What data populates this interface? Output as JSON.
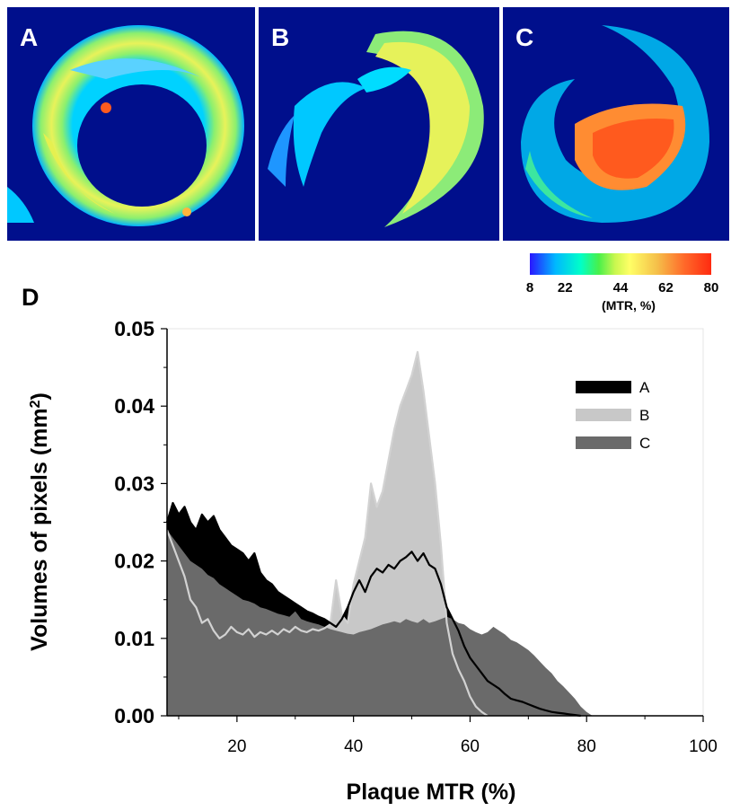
{
  "panels": {
    "a": {
      "label": "A"
    },
    "b": {
      "label": "B"
    },
    "c": {
      "label": "C"
    },
    "d": {
      "label": "D"
    }
  },
  "colorbar": {
    "ticks": [
      "8",
      "22",
      "44",
      "62",
      "80"
    ],
    "tick_values": [
      8,
      22,
      44,
      62,
      80
    ],
    "range": [
      8,
      80
    ],
    "unit_label": "(MTR, %)",
    "colors": [
      "#2a16ff",
      "#00b7ff",
      "#00ffc8",
      "#49f04a",
      "#ffff66",
      "#f5c04a",
      "#ff6a2a",
      "#ff2a10"
    ]
  },
  "chart_data": {
    "type": "area",
    "xlabel": "Plaque MTR (%)",
    "ylabel": "Volumes of pixels (mm²)",
    "xlim": [
      8,
      100
    ],
    "ylim": [
      0,
      0.05
    ],
    "x_ticks": [
      20,
      40,
      60,
      80,
      100
    ],
    "y_ticks": [
      "0.00",
      "0.01",
      "0.02",
      "0.03",
      "0.04",
      "0.05"
    ],
    "legend_position": "top-right",
    "series": [
      {
        "name": "A",
        "color": "#000000",
        "points": [
          [
            8,
            0.025
          ],
          [
            9,
            0.0275
          ],
          [
            10,
            0.026
          ],
          [
            11,
            0.027
          ],
          [
            12,
            0.025
          ],
          [
            13,
            0.024
          ],
          [
            14,
            0.026
          ],
          [
            15,
            0.025
          ],
          [
            16,
            0.0258
          ],
          [
            17,
            0.024
          ],
          [
            18,
            0.023
          ],
          [
            19,
            0.022
          ],
          [
            20,
            0.0215
          ],
          [
            21,
            0.021
          ],
          [
            22,
            0.02
          ],
          [
            23,
            0.021
          ],
          [
            24,
            0.0185
          ],
          [
            25,
            0.0175
          ],
          [
            26,
            0.017
          ],
          [
            27,
            0.016
          ],
          [
            28,
            0.0155
          ],
          [
            29,
            0.015
          ],
          [
            30,
            0.0145
          ],
          [
            31,
            0.014
          ],
          [
            32,
            0.0135
          ],
          [
            33,
            0.0132
          ],
          [
            34,
            0.0128
          ],
          [
            35,
            0.0125
          ],
          [
            36,
            0.012
          ],
          [
            37,
            0.0115
          ],
          [
            38,
            0.0125
          ],
          [
            39,
            0.014
          ],
          [
            40,
            0.016
          ],
          [
            41,
            0.0175
          ],
          [
            42,
            0.016
          ],
          [
            43,
            0.018
          ],
          [
            44,
            0.019
          ],
          [
            45,
            0.0185
          ],
          [
            46,
            0.0195
          ],
          [
            47,
            0.019
          ],
          [
            48,
            0.02
          ],
          [
            49,
            0.0205
          ],
          [
            50,
            0.0212
          ],
          [
            51,
            0.02
          ],
          [
            52,
            0.021
          ],
          [
            53,
            0.0195
          ],
          [
            54,
            0.019
          ],
          [
            55,
            0.017
          ],
          [
            56,
            0.014
          ],
          [
            57,
            0.0125
          ],
          [
            58,
            0.011
          ],
          [
            59,
            0.009
          ],
          [
            60,
            0.0075
          ],
          [
            61,
            0.0065
          ],
          [
            62,
            0.0055
          ],
          [
            63,
            0.0045
          ],
          [
            64,
            0.004
          ],
          [
            65,
            0.0035
          ],
          [
            66,
            0.0028
          ],
          [
            67,
            0.0022
          ],
          [
            68,
            0.002
          ],
          [
            69,
            0.0018
          ],
          [
            70,
            0.0015
          ],
          [
            71,
            0.0012
          ],
          [
            72,
            0.0009
          ],
          [
            73,
            0.0007
          ],
          [
            74,
            0.0005
          ],
          [
            75,
            0.0004
          ],
          [
            76,
            0.0003
          ],
          [
            77,
            0.0002
          ],
          [
            78,
            0.0001
          ],
          [
            79,
            0
          ]
        ]
      },
      {
        "name": "B",
        "color": "#c8c8c8",
        "points": [
          [
            8,
            0.024
          ],
          [
            9,
            0.022
          ],
          [
            10,
            0.02
          ],
          [
            11,
            0.018
          ],
          [
            12,
            0.015
          ],
          [
            13,
            0.014
          ],
          [
            14,
            0.012
          ],
          [
            15,
            0.0125
          ],
          [
            16,
            0.011
          ],
          [
            17,
            0.01
          ],
          [
            18,
            0.0105
          ],
          [
            19,
            0.0115
          ],
          [
            20,
            0.0108
          ],
          [
            21,
            0.0105
          ],
          [
            22,
            0.0112
          ],
          [
            23,
            0.0102
          ],
          [
            24,
            0.0108
          ],
          [
            25,
            0.0105
          ],
          [
            26,
            0.011
          ],
          [
            27,
            0.0105
          ],
          [
            28,
            0.0112
          ],
          [
            29,
            0.0108
          ],
          [
            30,
            0.0115
          ],
          [
            31,
            0.011
          ],
          [
            32,
            0.0108
          ],
          [
            33,
            0.0112
          ],
          [
            34,
            0.011
          ],
          [
            35,
            0.0113
          ],
          [
            36,
            0.0118
          ],
          [
            37,
            0.0175
          ],
          [
            38,
            0.013
          ],
          [
            39,
            0.012
          ],
          [
            40,
            0.017
          ],
          [
            41,
            0.02
          ],
          [
            42,
            0.023
          ],
          [
            43,
            0.03
          ],
          [
            44,
            0.027
          ],
          [
            45,
            0.029
          ],
          [
            46,
            0.033
          ],
          [
            47,
            0.037
          ],
          [
            48,
            0.04
          ],
          [
            49,
            0.042
          ],
          [
            50,
            0.044
          ],
          [
            51,
            0.047
          ],
          [
            52,
            0.042
          ],
          [
            53,
            0.036
          ],
          [
            54,
            0.03
          ],
          [
            55,
            0.022
          ],
          [
            56,
            0.012
          ],
          [
            57,
            0.008
          ],
          [
            58,
            0.006
          ],
          [
            59,
            0.0045
          ],
          [
            60,
            0.0025
          ],
          [
            61,
            0.0012
          ],
          [
            62,
            0.0005
          ],
          [
            63,
            0
          ]
        ]
      },
      {
        "name": "C",
        "color": "#6a6a6a",
        "points": [
          [
            8,
            0.024
          ],
          [
            9,
            0.023
          ],
          [
            10,
            0.022
          ],
          [
            11,
            0.021
          ],
          [
            12,
            0.02
          ],
          [
            13,
            0.0195
          ],
          [
            14,
            0.019
          ],
          [
            15,
            0.0182
          ],
          [
            16,
            0.0178
          ],
          [
            17,
            0.017
          ],
          [
            18,
            0.0165
          ],
          [
            19,
            0.016
          ],
          [
            20,
            0.0155
          ],
          [
            21,
            0.015
          ],
          [
            22,
            0.0148
          ],
          [
            23,
            0.0145
          ],
          [
            24,
            0.014
          ],
          [
            25,
            0.0138
          ],
          [
            26,
            0.0135
          ],
          [
            27,
            0.0132
          ],
          [
            28,
            0.013
          ],
          [
            29,
            0.0128
          ],
          [
            30,
            0.0135
          ],
          [
            31,
            0.0125
          ],
          [
            32,
            0.0122
          ],
          [
            33,
            0.012
          ],
          [
            34,
            0.0118
          ],
          [
            35,
            0.0115
          ],
          [
            36,
            0.0112
          ],
          [
            37,
            0.011
          ],
          [
            38,
            0.0108
          ],
          [
            39,
            0.0106
          ],
          [
            40,
            0.0105
          ],
          [
            41,
            0.0108
          ],
          [
            42,
            0.011
          ],
          [
            43,
            0.0112
          ],
          [
            44,
            0.0115
          ],
          [
            45,
            0.0118
          ],
          [
            46,
            0.012
          ],
          [
            47,
            0.0122
          ],
          [
            48,
            0.012
          ],
          [
            49,
            0.0125
          ],
          [
            50,
            0.0122
          ],
          [
            51,
            0.012
          ],
          [
            52,
            0.0125
          ],
          [
            53,
            0.012
          ],
          [
            54,
            0.0122
          ],
          [
            55,
            0.0125
          ],
          [
            56,
            0.0128
          ],
          [
            57,
            0.0125
          ],
          [
            58,
            0.012
          ],
          [
            59,
            0.0118
          ],
          [
            60,
            0.0112
          ],
          [
            61,
            0.0108
          ],
          [
            62,
            0.0105
          ],
          [
            63,
            0.0108
          ],
          [
            64,
            0.0115
          ],
          [
            65,
            0.011
          ],
          [
            66,
            0.0105
          ],
          [
            67,
            0.0098
          ],
          [
            68,
            0.0095
          ],
          [
            69,
            0.009
          ],
          [
            70,
            0.0085
          ],
          [
            71,
            0.0078
          ],
          [
            72,
            0.007
          ],
          [
            73,
            0.0062
          ],
          [
            74,
            0.0055
          ],
          [
            75,
            0.0045
          ],
          [
            76,
            0.0038
          ],
          [
            77,
            0.003
          ],
          [
            78,
            0.0022
          ],
          [
            79,
            0.0012
          ],
          [
            80,
            0.0005
          ],
          [
            81,
            0
          ]
        ]
      }
    ]
  }
}
